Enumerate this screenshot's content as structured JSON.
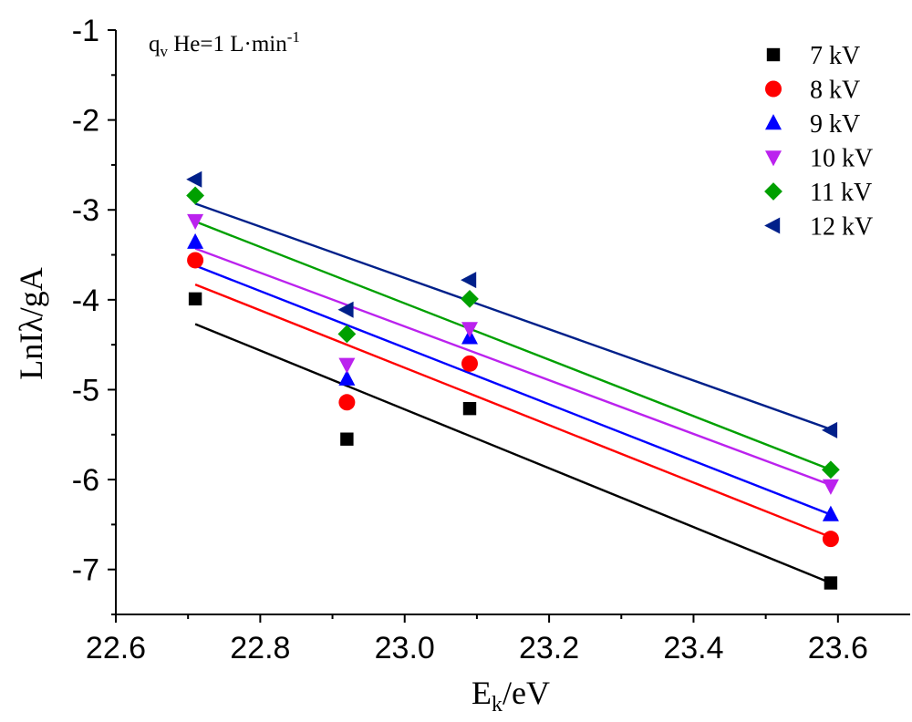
{
  "chart_data": {
    "type": "scatter",
    "xlabel": {
      "main": "E",
      "sub": "k",
      "rest": "/eV"
    },
    "ylabel": "LnIλ/gA",
    "annotation": {
      "q": "q",
      "q_sub": "v",
      "rest": " He=1 L·min",
      "sup": "-1"
    },
    "xlim": [
      22.6,
      23.7
    ],
    "ylim": [
      -7.5,
      -1
    ],
    "xticks": [
      "22.6",
      "22.8",
      "23.0",
      "23.2",
      "23.4",
      "23.6"
    ],
    "yticks": [
      "-1",
      "-2",
      "-3",
      "-4",
      "-5",
      "-6",
      "-7"
    ],
    "x": [
      22.71,
      22.92,
      23.09,
      23.59
    ],
    "grid": false,
    "legend_position": "top-right",
    "series": [
      {
        "name": "7 kV",
        "color": "#000000",
        "marker": "square",
        "values": [
          -3.99,
          -5.55,
          -5.21,
          -7.15
        ],
        "fit": [
          -4.27,
          -7.15
        ]
      },
      {
        "name": "8 kV",
        "color": "#ff0000",
        "marker": "circle",
        "values": [
          -3.56,
          -5.14,
          -4.71,
          -6.66
        ],
        "fit": [
          -3.83,
          -6.64
        ]
      },
      {
        "name": "9 kV",
        "color": "#0000ff",
        "marker": "triangle-up",
        "values": [
          -3.36,
          -4.88,
          -4.42,
          -6.39
        ],
        "fit": [
          -3.62,
          -6.39
        ]
      },
      {
        "name": "10 kV",
        "color": "#bb22ee",
        "marker": "triangle-down",
        "values": [
          -3.12,
          -4.72,
          -4.32,
          -6.07
        ],
        "fit": [
          -3.43,
          -6.06
        ]
      },
      {
        "name": "11 kV",
        "color": "#00a000",
        "marker": "diamond",
        "values": [
          -2.84,
          -4.38,
          -3.99,
          -5.89
        ],
        "fit": [
          -3.13,
          -5.89
        ]
      },
      {
        "name": "12 kV",
        "color": "#00208a",
        "marker": "triangle-left",
        "values": [
          -2.66,
          -4.11,
          -3.78,
          -5.45
        ],
        "fit": [
          -2.93,
          -5.44
        ]
      }
    ]
  }
}
